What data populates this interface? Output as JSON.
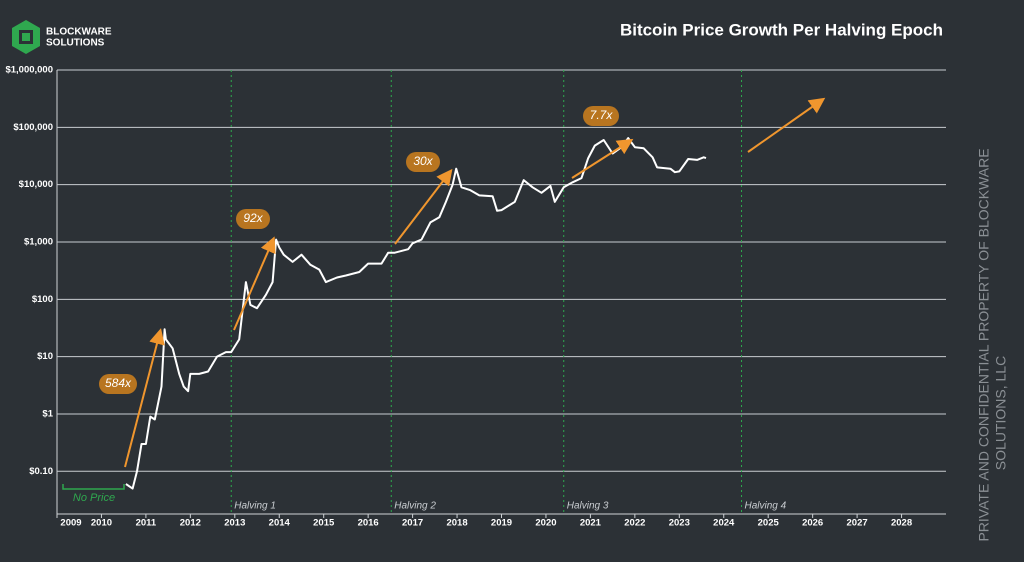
{
  "brand": {
    "line1": "BLOCKWARE",
    "line2": "SOLUTIONS"
  },
  "watermark": {
    "line1": "PRIVATE AND CONFIDENTIAL PROPERTY OF BLOCKWARE",
    "line2": "SOLUTIONS, LLC"
  },
  "chart_data": {
    "type": "line",
    "title": "Bitcoin Price Growth Per Halving Epoch",
    "log_y": true,
    "grid": true,
    "color": "#ffffff",
    "xlim": [
      2009,
      2029
    ],
    "xticks": [
      2009,
      2010,
      2011,
      2012,
      2013,
      2014,
      2015,
      2016,
      2017,
      2018,
      2019,
      2020,
      2021,
      2022,
      2023,
      2024,
      2025,
      2026,
      2027,
      2028
    ],
    "ylim": [
      0.018,
      1000000
    ],
    "yticks": [
      {
        "value": 0.1,
        "label": "$0.10"
      },
      {
        "value": 1,
        "label": "$1"
      },
      {
        "value": 10,
        "label": "$10"
      },
      {
        "value": 100,
        "label": "$100"
      },
      {
        "value": 1000,
        "label": "$1,000"
      },
      {
        "value": 10000,
        "label": "$10,000"
      },
      {
        "value": 100000,
        "label": "$100,000"
      },
      {
        "value": 1000000,
        "label": "$1,000,000"
      }
    ],
    "x": [
      2010.55,
      2010.7,
      2010.8,
      2010.9,
      2011.0,
      2011.1,
      2011.2,
      2011.35,
      2011.42,
      2011.45,
      2011.6,
      2011.75,
      2011.85,
      2011.95,
      2012.0,
      2012.2,
      2012.4,
      2012.6,
      2012.8,
      2012.92,
      2013.1,
      2013.25,
      2013.35,
      2013.5,
      2013.7,
      2013.85,
      2013.93,
      2014.0,
      2014.1,
      2014.3,
      2014.5,
      2014.7,
      2014.9,
      2015.05,
      2015.3,
      2015.5,
      2015.8,
      2016.0,
      2016.3,
      2016.45,
      2016.6,
      2016.9,
      2017.0,
      2017.2,
      2017.4,
      2017.6,
      2017.75,
      2017.9,
      2017.98,
      2018.1,
      2018.3,
      2018.5,
      2018.8,
      2018.9,
      2019.0,
      2019.3,
      2019.5,
      2019.7,
      2019.9,
      2020.1,
      2020.2,
      2020.4,
      2020.6,
      2020.8,
      2020.95,
      2021.1,
      2021.3,
      2021.5,
      2021.7,
      2021.85,
      2022.0,
      2022.2,
      2022.4,
      2022.5,
      2022.8,
      2022.9,
      2023.0,
      2023.2,
      2023.4,
      2023.55,
      2023.6
    ],
    "values": [
      0.06,
      0.05,
      0.1,
      0.3,
      0.3,
      0.9,
      0.8,
      3,
      30,
      20,
      14,
      5,
      3,
      2.5,
      5,
      5,
      5.5,
      10,
      12,
      12,
      20,
      200,
      80,
      70,
      120,
      200,
      1100,
      800,
      600,
      450,
      600,
      400,
      330,
      200,
      240,
      260,
      300,
      420,
      420,
      650,
      650,
      750,
      950,
      1100,
      2200,
      2700,
      5000,
      10000,
      19000,
      9000,
      8000,
      6500,
      6300,
      3500,
      3600,
      5000,
      12000,
      9000,
      7200,
      9500,
      5000,
      9000,
      11000,
      13000,
      29000,
      48000,
      60000,
      35000,
      45000,
      65000,
      45000,
      43000,
      30000,
      20000,
      19000,
      16500,
      17000,
      28000,
      27000,
      30000,
      29000
    ],
    "halvings": [
      {
        "x": 2012.92,
        "label": "Halving 1"
      },
      {
        "x": 2016.52,
        "label": "Halving 2"
      },
      {
        "x": 2020.4,
        "label": "Halving 3"
      },
      {
        "x": 2024.4,
        "label": "Halving 4"
      }
    ],
    "annotations": [
      "584x",
      "92x",
      "30x",
      "7.7x"
    ],
    "no_price": "No Price"
  }
}
